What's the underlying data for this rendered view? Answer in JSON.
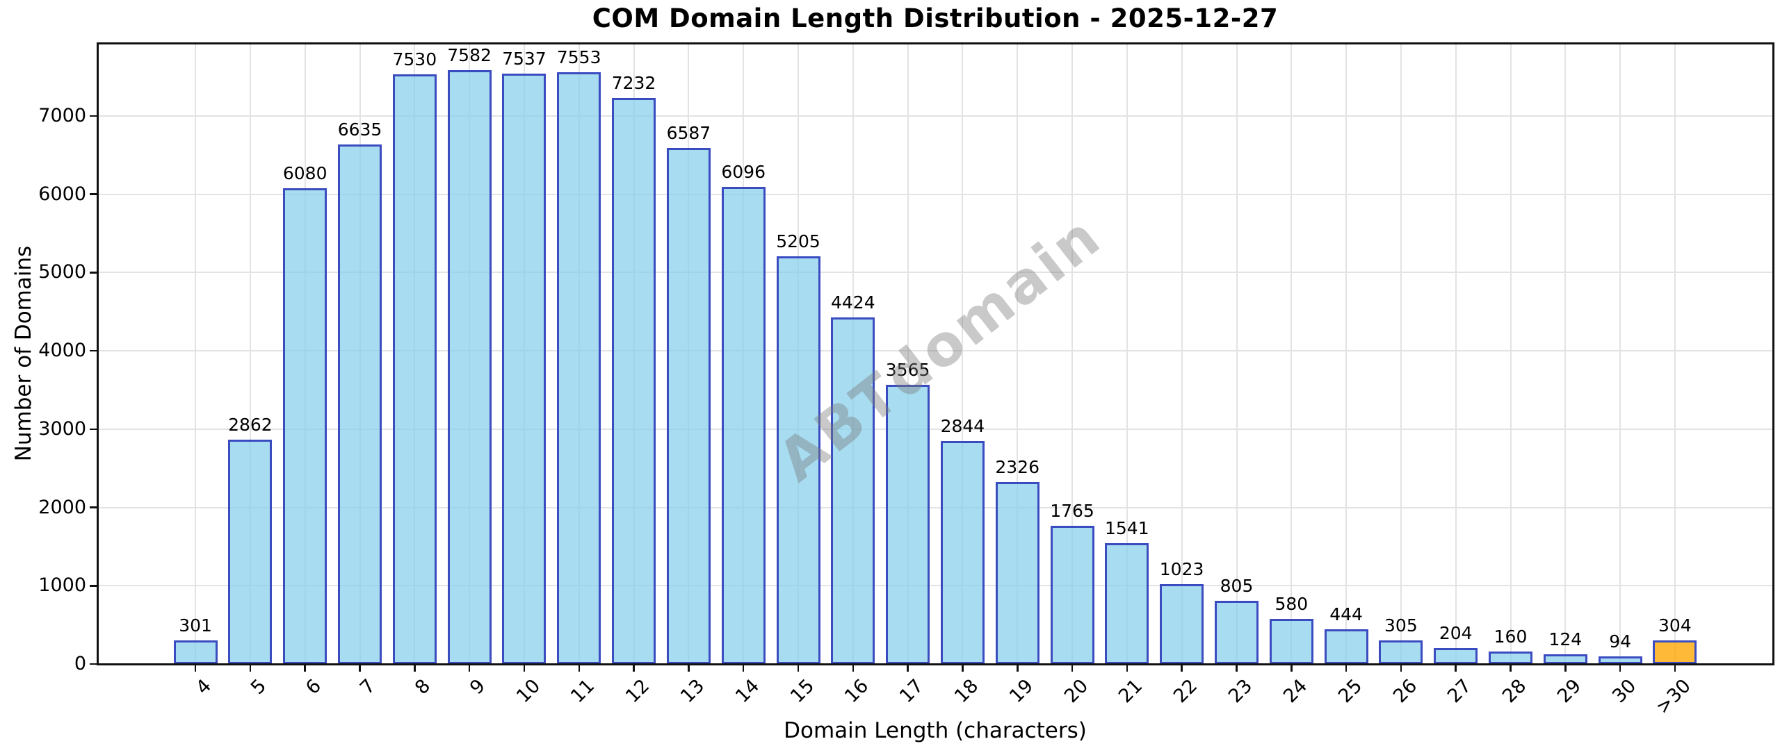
{
  "chart_data": {
    "type": "bar",
    "title": "COM Domain Length Distribution - 2025-12-27",
    "xlabel": "Domain Length (characters)",
    "ylabel": "Number of Domains",
    "categories": [
      "4",
      "5",
      "6",
      "7",
      "8",
      "9",
      "10",
      "11",
      "12",
      "13",
      "14",
      "15",
      "16",
      "17",
      "18",
      "19",
      "20",
      "21",
      "22",
      "23",
      "24",
      "25",
      "26",
      "27",
      "28",
      "29",
      "30",
      ">30"
    ],
    "values": [
      301,
      2862,
      6080,
      6635,
      7530,
      7582,
      7537,
      7553,
      7232,
      6587,
      6096,
      5205,
      4424,
      3565,
      2844,
      2326,
      1765,
      1541,
      1023,
      805,
      580,
      444,
      305,
      204,
      160,
      124,
      94,
      304
    ],
    "yticks": [
      0,
      1000,
      2000,
      3000,
      4000,
      5000,
      6000,
      7000
    ],
    "ylim": [
      0,
      7920
    ],
    "grid": true,
    "legend_position": "none",
    "bar_fill": "rgba(135,206,235,0.72)",
    "bar_fill_hex": "#a9d8ea",
    "bar_edge": "#3b4cc0",
    "highlight_index": 27,
    "highlight_fill": "rgba(255,165,0,0.78)",
    "highlight_fill_hex": "#ffb938",
    "grid_color": "#e3e3e3",
    "axis_color": "#111111",
    "watermark": "ABTdomain",
    "watermark_color": "#bfbfbf"
  }
}
